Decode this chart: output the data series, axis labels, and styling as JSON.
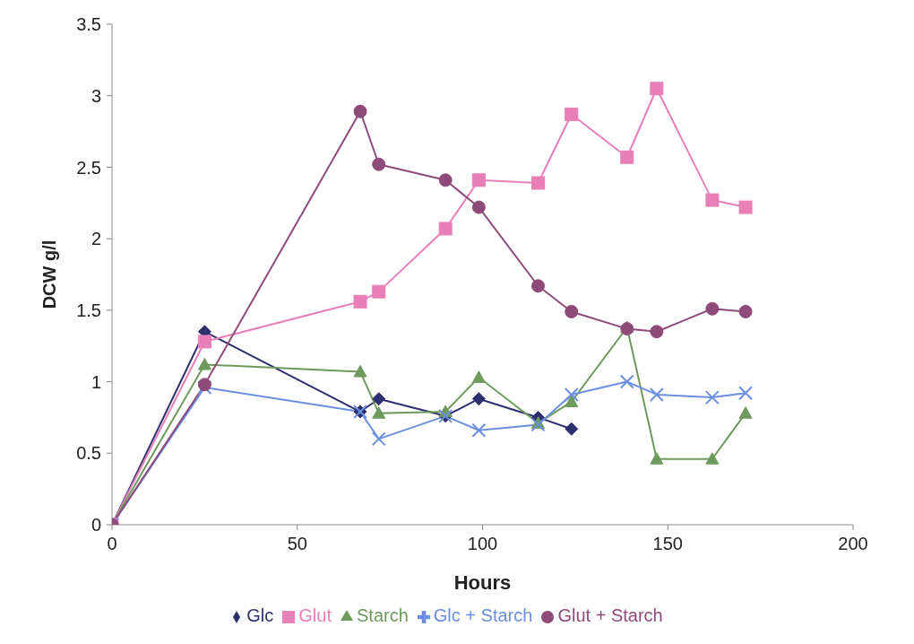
{
  "chart_data": {
    "type": "line",
    "xlabel": "Hours",
    "ylabel": "DCW g/l",
    "x": [
      0,
      25,
      67,
      72,
      90,
      99,
      115,
      124,
      139,
      147,
      162,
      171
    ],
    "xlim": [
      0,
      200
    ],
    "xticks": [
      0,
      50,
      100,
      150,
      200
    ],
    "ylim": [
      0,
      3.5
    ],
    "yticks": [
      0,
      0.5,
      1,
      1.5,
      2,
      2.5,
      3,
      3.5
    ],
    "grid": false,
    "legend": "bottom",
    "line_style": "solid",
    "series": [
      {
        "name": "Glc",
        "color": "#2e2f6e",
        "marker": "diamond",
        "values": [
          0,
          1.35,
          0.79,
          0.88,
          0.76,
          0.88,
          0.75,
          0.67,
          null,
          null,
          null,
          null
        ]
      },
      {
        "name": "Glut",
        "color": "#e87fb8",
        "marker": "square",
        "values": [
          0,
          1.28,
          1.56,
          1.63,
          2.07,
          2.41,
          2.39,
          2.87,
          2.57,
          3.05,
          2.27,
          2.22
        ]
      },
      {
        "name": "Starch",
        "color": "#6e9a5e",
        "marker": "triangle",
        "values": [
          0,
          1.12,
          1.07,
          0.78,
          0.79,
          1.03,
          0.71,
          0.86,
          1.38,
          0.46,
          0.46,
          0.78
        ]
      },
      {
        "name": "Glc + Starch",
        "color": "#6b8fe0",
        "marker": "cross",
        "values": [
          0,
          0.96,
          0.79,
          0.6,
          0.76,
          0.66,
          0.7,
          0.91,
          1.0,
          0.91,
          0.89,
          0.92
        ]
      },
      {
        "name": "Glut + Starch",
        "color": "#8e4a78",
        "marker": "circle",
        "values": [
          0,
          0.98,
          2.89,
          2.52,
          2.41,
          2.22,
          1.67,
          1.49,
          1.37,
          1.35,
          1.51,
          1.49
        ]
      }
    ]
  }
}
